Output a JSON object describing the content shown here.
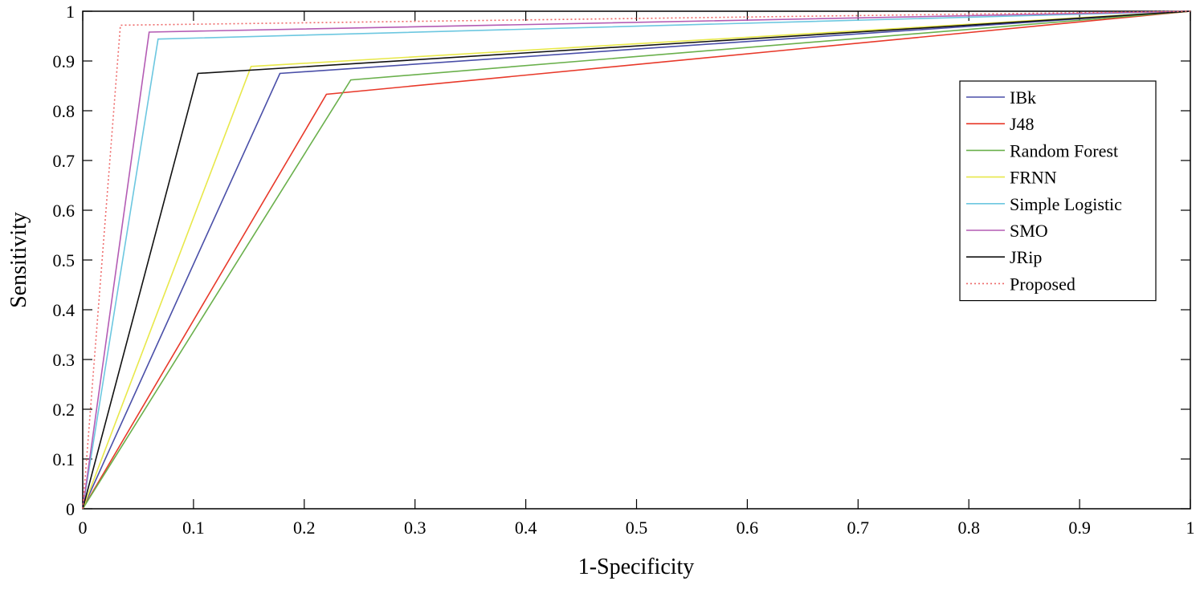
{
  "chart_data": {
    "type": "line",
    "title": "",
    "xlabel": "1-Specificity",
    "ylabel": "Sensitivity",
    "xlim": [
      0,
      1
    ],
    "ylim": [
      0,
      1
    ],
    "x_ticks": [
      "0",
      "0.1",
      "0.2",
      "0.3",
      "0.4",
      "0.5",
      "0.6",
      "0.7",
      "0.8",
      "0.9",
      "1"
    ],
    "y_ticks": [
      "0",
      "0.1",
      "0.2",
      "0.3",
      "0.4",
      "0.5",
      "0.6",
      "0.7",
      "0.8",
      "0.9",
      "1"
    ],
    "grid": false,
    "legend_position": "top-right",
    "series": [
      {
        "name": "IBk",
        "color": "#4a4fa8",
        "dash": "solid",
        "x": [
          0,
          0.178,
          1
        ],
        "y": [
          0,
          0.875,
          1
        ]
      },
      {
        "name": "J48",
        "color": "#e8392a",
        "dash": "solid",
        "x": [
          0,
          0.22,
          1
        ],
        "y": [
          0,
          0.833,
          1
        ]
      },
      {
        "name": "Random Forest",
        "color": "#6ab04c",
        "dash": "solid",
        "x": [
          0,
          0.242,
          1
        ],
        "y": [
          0,
          0.862,
          1
        ]
      },
      {
        "name": "FRNN",
        "color": "#e8e84a",
        "dash": "solid",
        "x": [
          0,
          0.152,
          1
        ],
        "y": [
          0,
          0.889,
          1
        ]
      },
      {
        "name": "Simple Logistic",
        "color": "#6cc7e0",
        "dash": "solid",
        "x": [
          0,
          0.068,
          1
        ],
        "y": [
          0,
          0.944,
          1
        ]
      },
      {
        "name": "SMO",
        "color": "#b45cb4",
        "dash": "solid",
        "x": [
          0,
          0.06,
          1
        ],
        "y": [
          0,
          0.958,
          1
        ]
      },
      {
        "name": "JRip",
        "color": "#111111",
        "dash": "solid",
        "x": [
          0,
          0.104,
          1
        ],
        "y": [
          0,
          0.875,
          1
        ]
      },
      {
        "name": "Proposed",
        "color": "#ee6a6a",
        "dash": "dotted",
        "x": [
          0,
          0.034,
          1
        ],
        "y": [
          0,
          0.972,
          1
        ]
      }
    ]
  }
}
